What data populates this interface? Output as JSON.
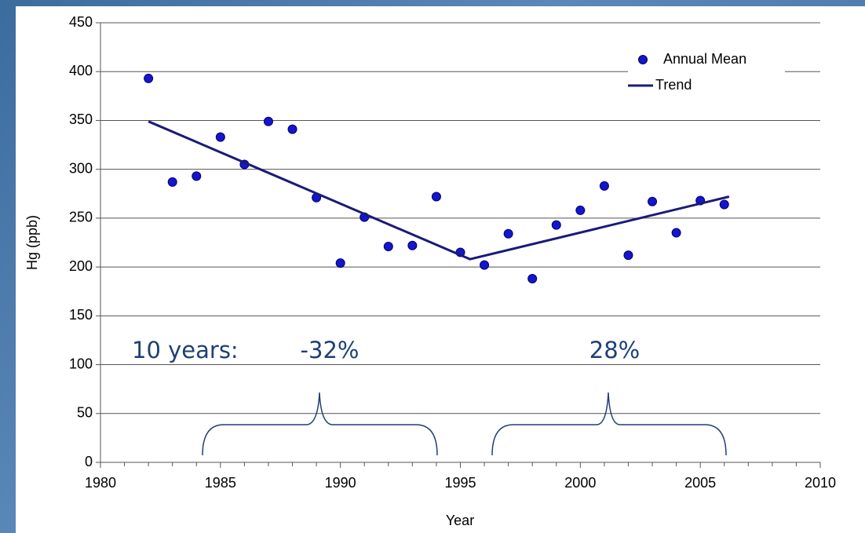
{
  "chart_data": {
    "type": "scatter",
    "x_label": "Year",
    "y_label": "Hg (ppb)",
    "xlim": [
      1980,
      2010
    ],
    "xticks": [
      1980,
      1985,
      1990,
      1995,
      2000,
      2005,
      2010
    ],
    "ylim": [
      0,
      450
    ],
    "yticks": [
      0,
      50,
      100,
      150,
      200,
      250,
      300,
      350,
      400,
      450
    ],
    "grid": true,
    "legend": "upper right",
    "series": [
      {
        "name": "Annual Mean",
        "mode": "markers",
        "color": "#1515d0",
        "x": [
          1982,
          1983,
          1984,
          1985,
          1986,
          1987,
          1988,
          1989,
          1990,
          1991,
          1992,
          1993,
          1994,
          1995,
          1996,
          1997,
          1998,
          1999,
          2000,
          2001,
          2002,
          2003,
          2004,
          2005,
          2006
        ],
        "values": [
          393,
          287,
          293,
          333,
          305,
          349,
          341,
          271,
          204,
          251,
          221,
          222,
          272,
          215,
          202,
          234,
          188,
          243,
          258,
          283,
          212,
          267,
          235,
          268,
          264
        ]
      },
      {
        "name": "Trend",
        "mode": "line",
        "color": "#1a1a7a",
        "x": [
          1982,
          1995.4,
          2006.2
        ],
        "values": [
          349,
          208,
          272
        ]
      }
    ],
    "annotations": [
      "10 years:",
      "-32%",
      "28%"
    ]
  }
}
